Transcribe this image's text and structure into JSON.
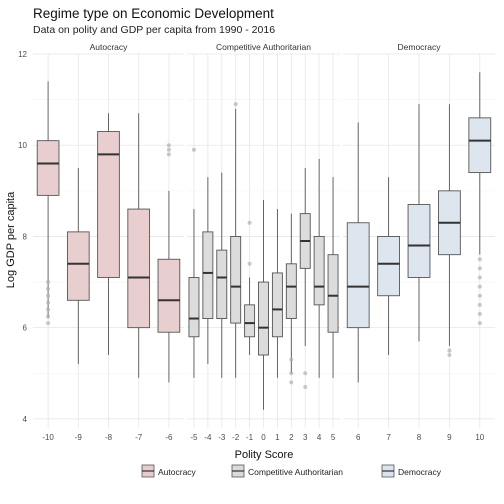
{
  "chart_data": {
    "type": "boxplot",
    "title": "Regime type on Economic Development",
    "subtitle": "Data on polity and GDP per capita from 1990 - 2016",
    "xlabel": "Polity Score",
    "ylabel": "Log GDP per capita",
    "ylim": [
      3.8,
      12.0
    ],
    "yticks": [
      4,
      6,
      8,
      10,
      12
    ],
    "grid": true,
    "legend_position": "bottom",
    "colors": {
      "Autocracy": "#e8cbcc",
      "Competitive Authoritarian": "#dadada",
      "Democracy": "#dbe4ee",
      "box_stroke": "#555555",
      "outlier": "#b0b0b0"
    },
    "legend": [
      "Autocracy",
      "Competitive Authoritarian",
      "Democracy"
    ],
    "panels": [
      {
        "name": "Autocracy",
        "boxes": [
          {
            "x": "-10",
            "whisker_low": 6.2,
            "q1": 8.9,
            "median": 9.6,
            "q3": 10.1,
            "whisker_high": 11.4,
            "outliers": [
              6.1,
              6.25,
              6.4,
              6.55,
              6.7,
              6.85,
              7.0
            ]
          },
          {
            "x": "-9",
            "whisker_low": 5.2,
            "q1": 6.6,
            "median": 7.4,
            "q3": 8.1,
            "whisker_high": 9.5,
            "outliers": []
          },
          {
            "x": "-8",
            "whisker_low": 5.4,
            "q1": 7.1,
            "median": 9.8,
            "q3": 10.3,
            "whisker_high": 10.7,
            "outliers": []
          },
          {
            "x": "-7",
            "whisker_low": 4.9,
            "q1": 6.0,
            "median": 7.1,
            "q3": 8.6,
            "whisker_high": 10.7,
            "outliers": []
          },
          {
            "x": "-6",
            "whisker_low": 4.8,
            "q1": 5.9,
            "median": 6.6,
            "q3": 7.5,
            "whisker_high": 9.0,
            "outliers": [
              9.8,
              9.9,
              10.0
            ]
          }
        ]
      },
      {
        "name": "Competitive Authoritarian",
        "boxes": [
          {
            "x": "-5",
            "whisker_low": 4.9,
            "q1": 5.8,
            "median": 6.2,
            "q3": 7.1,
            "whisker_high": 8.6,
            "outliers": [
              9.9
            ]
          },
          {
            "x": "-4",
            "whisker_low": 5.2,
            "q1": 6.2,
            "median": 7.2,
            "q3": 8.1,
            "whisker_high": 9.3,
            "outliers": []
          },
          {
            "x": "-3",
            "whisker_low": 4.9,
            "q1": 6.2,
            "median": 7.1,
            "q3": 7.7,
            "whisker_high": 9.4,
            "outliers": []
          },
          {
            "x": "-2",
            "whisker_low": 4.9,
            "q1": 6.1,
            "median": 6.9,
            "q3": 8.0,
            "whisker_high": 10.8,
            "outliers": [
              10.9
            ]
          },
          {
            "x": "-1",
            "whisker_low": 5.4,
            "q1": 5.8,
            "median": 6.1,
            "q3": 6.5,
            "whisker_high": 7.1,
            "outliers": [
              7.4,
              8.3
            ]
          },
          {
            "x": "0",
            "whisker_low": 4.2,
            "q1": 5.4,
            "median": 6.0,
            "q3": 7.0,
            "whisker_high": 8.8,
            "outliers": []
          },
          {
            "x": "1",
            "whisker_low": 4.9,
            "q1": 5.8,
            "median": 6.4,
            "q3": 7.2,
            "whisker_high": 8.6,
            "outliers": []
          },
          {
            "x": "2",
            "whisker_low": 5.0,
            "q1": 6.2,
            "median": 6.9,
            "q3": 7.4,
            "whisker_high": 8.5,
            "outliers": [
              4.8,
              5.0,
              5.3
            ]
          },
          {
            "x": "3",
            "whisker_low": 5.6,
            "q1": 7.3,
            "median": 7.9,
            "q3": 8.5,
            "whisker_high": 9.5,
            "outliers": [
              4.7,
              5.0
            ]
          },
          {
            "x": "4",
            "whisker_low": 4.9,
            "q1": 6.5,
            "median": 6.9,
            "q3": 8.0,
            "whisker_high": 9.7,
            "outliers": []
          },
          {
            "x": "5",
            "whisker_low": 4.9,
            "q1": 5.9,
            "median": 6.7,
            "q3": 7.6,
            "whisker_high": 9.3,
            "outliers": []
          }
        ]
      },
      {
        "name": "Democracy",
        "boxes": [
          {
            "x": "6",
            "whisker_low": 4.8,
            "q1": 6.0,
            "median": 6.9,
            "q3": 8.3,
            "whisker_high": 10.5,
            "outliers": []
          },
          {
            "x": "7",
            "whisker_low": 5.4,
            "q1": 6.7,
            "median": 7.4,
            "q3": 8.0,
            "whisker_high": 9.3,
            "outliers": []
          },
          {
            "x": "8",
            "whisker_low": 5.7,
            "q1": 7.1,
            "median": 7.8,
            "q3": 8.7,
            "whisker_high": 10.9,
            "outliers": []
          },
          {
            "x": "9",
            "whisker_low": 5.6,
            "q1": 7.6,
            "median": 8.3,
            "q3": 9.0,
            "whisker_high": 10.9,
            "outliers": [
              5.4,
              5.5
            ]
          },
          {
            "x": "10",
            "whisker_low": 7.6,
            "q1": 9.4,
            "median": 10.1,
            "q3": 10.6,
            "whisker_high": 11.6,
            "outliers": [
              6.1,
              6.3,
              6.5,
              6.7,
              6.9,
              7.1,
              7.3,
              7.5
            ]
          }
        ]
      }
    ]
  }
}
